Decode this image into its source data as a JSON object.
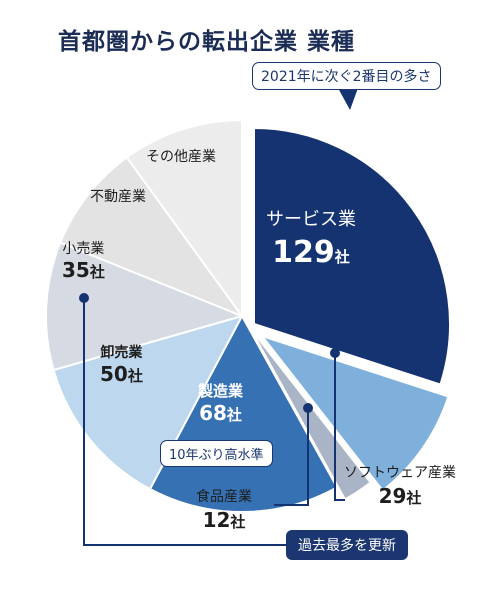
{
  "title": "首都圏からの転出企業 業種",
  "unit": "社",
  "chart_data": {
    "type": "pie",
    "title": "首都圏からの転出企業 業種",
    "slices": [
      {
        "name": "サービス業",
        "value": 129,
        "color": "#143370",
        "exploded": true
      },
      {
        "name": "ソフトウェア産業",
        "value": 29,
        "color": "#7fb0dc",
        "exploded": true
      },
      {
        "name": "食品産業",
        "value": 12,
        "color": "#a9b4c6",
        "exploded": true
      },
      {
        "name": "製造業",
        "value": 68,
        "color": "#3671b4"
      },
      {
        "name": "卸売業",
        "value": 50,
        "color": "#bdd7ee"
      },
      {
        "name": "小売業",
        "value": 35,
        "color": "#d6dae2"
      },
      {
        "name": "不動産業",
        "value": null,
        "color": "#e3e3e3"
      },
      {
        "name": "その他産業",
        "value": null,
        "color": "#ececec"
      }
    ]
  },
  "labels": {
    "service": {
      "name": "サービス業",
      "value": "129"
    },
    "software": {
      "name": "ソフトウェア産業",
      "value": "29"
    },
    "food": {
      "name": "食品産業",
      "value": "12"
    },
    "manufacturing": {
      "name": "製造業",
      "value": "68"
    },
    "wholesale": {
      "name": "卸売業",
      "value": "50"
    },
    "retail": {
      "name": "小売業",
      "value": "35"
    },
    "realestate": {
      "name": "不動産業"
    },
    "other": {
      "name": "その他産業"
    }
  },
  "annotations": {
    "second_place": "2021年に次ぐ2番目の多さ",
    "ten_year_high": "10年ぶり高水準",
    "record_high": "過去最多を更新"
  }
}
